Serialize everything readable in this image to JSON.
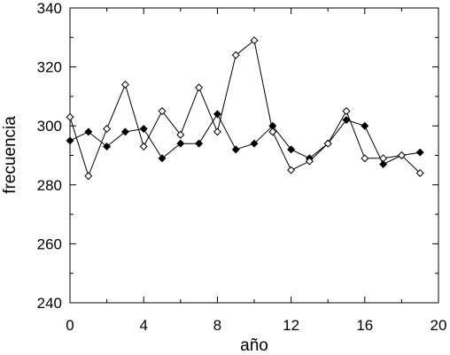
{
  "chart_data": {
    "type": "line",
    "title": "",
    "xlabel": "año",
    "ylabel": "frecuencia",
    "xlim": [
      0,
      20
    ],
    "ylim": [
      240,
      340
    ],
    "xticks": [
      0,
      4,
      8,
      12,
      16,
      20
    ],
    "yticks": [
      240,
      260,
      280,
      300,
      320,
      340
    ],
    "grid": false,
    "legend": "none",
    "series": [
      {
        "marker": "filled-diamond",
        "color": "#000000",
        "x": [
          0,
          1,
          2,
          3,
          4,
          5,
          6,
          7,
          8,
          9,
          10,
          11,
          12,
          13,
          14,
          15,
          16,
          17,
          18,
          19
        ],
        "y": [
          295,
          298,
          293,
          298,
          299,
          289,
          294,
          294,
          304,
          292,
          294,
          300,
          292,
          289,
          294,
          302,
          300,
          287,
          290,
          291
        ]
      },
      {
        "marker": "open-diamond",
        "color": "#000000",
        "x": [
          0,
          1,
          2,
          3,
          4,
          5,
          6,
          7,
          8,
          9,
          10,
          11,
          12,
          13,
          14,
          15,
          16,
          17,
          18,
          19
        ],
        "y": [
          303,
          283,
          299,
          314,
          293,
          305,
          297,
          313,
          298,
          324,
          329,
          298,
          285,
          288,
          294,
          305,
          289,
          289,
          290,
          284
        ]
      }
    ]
  }
}
